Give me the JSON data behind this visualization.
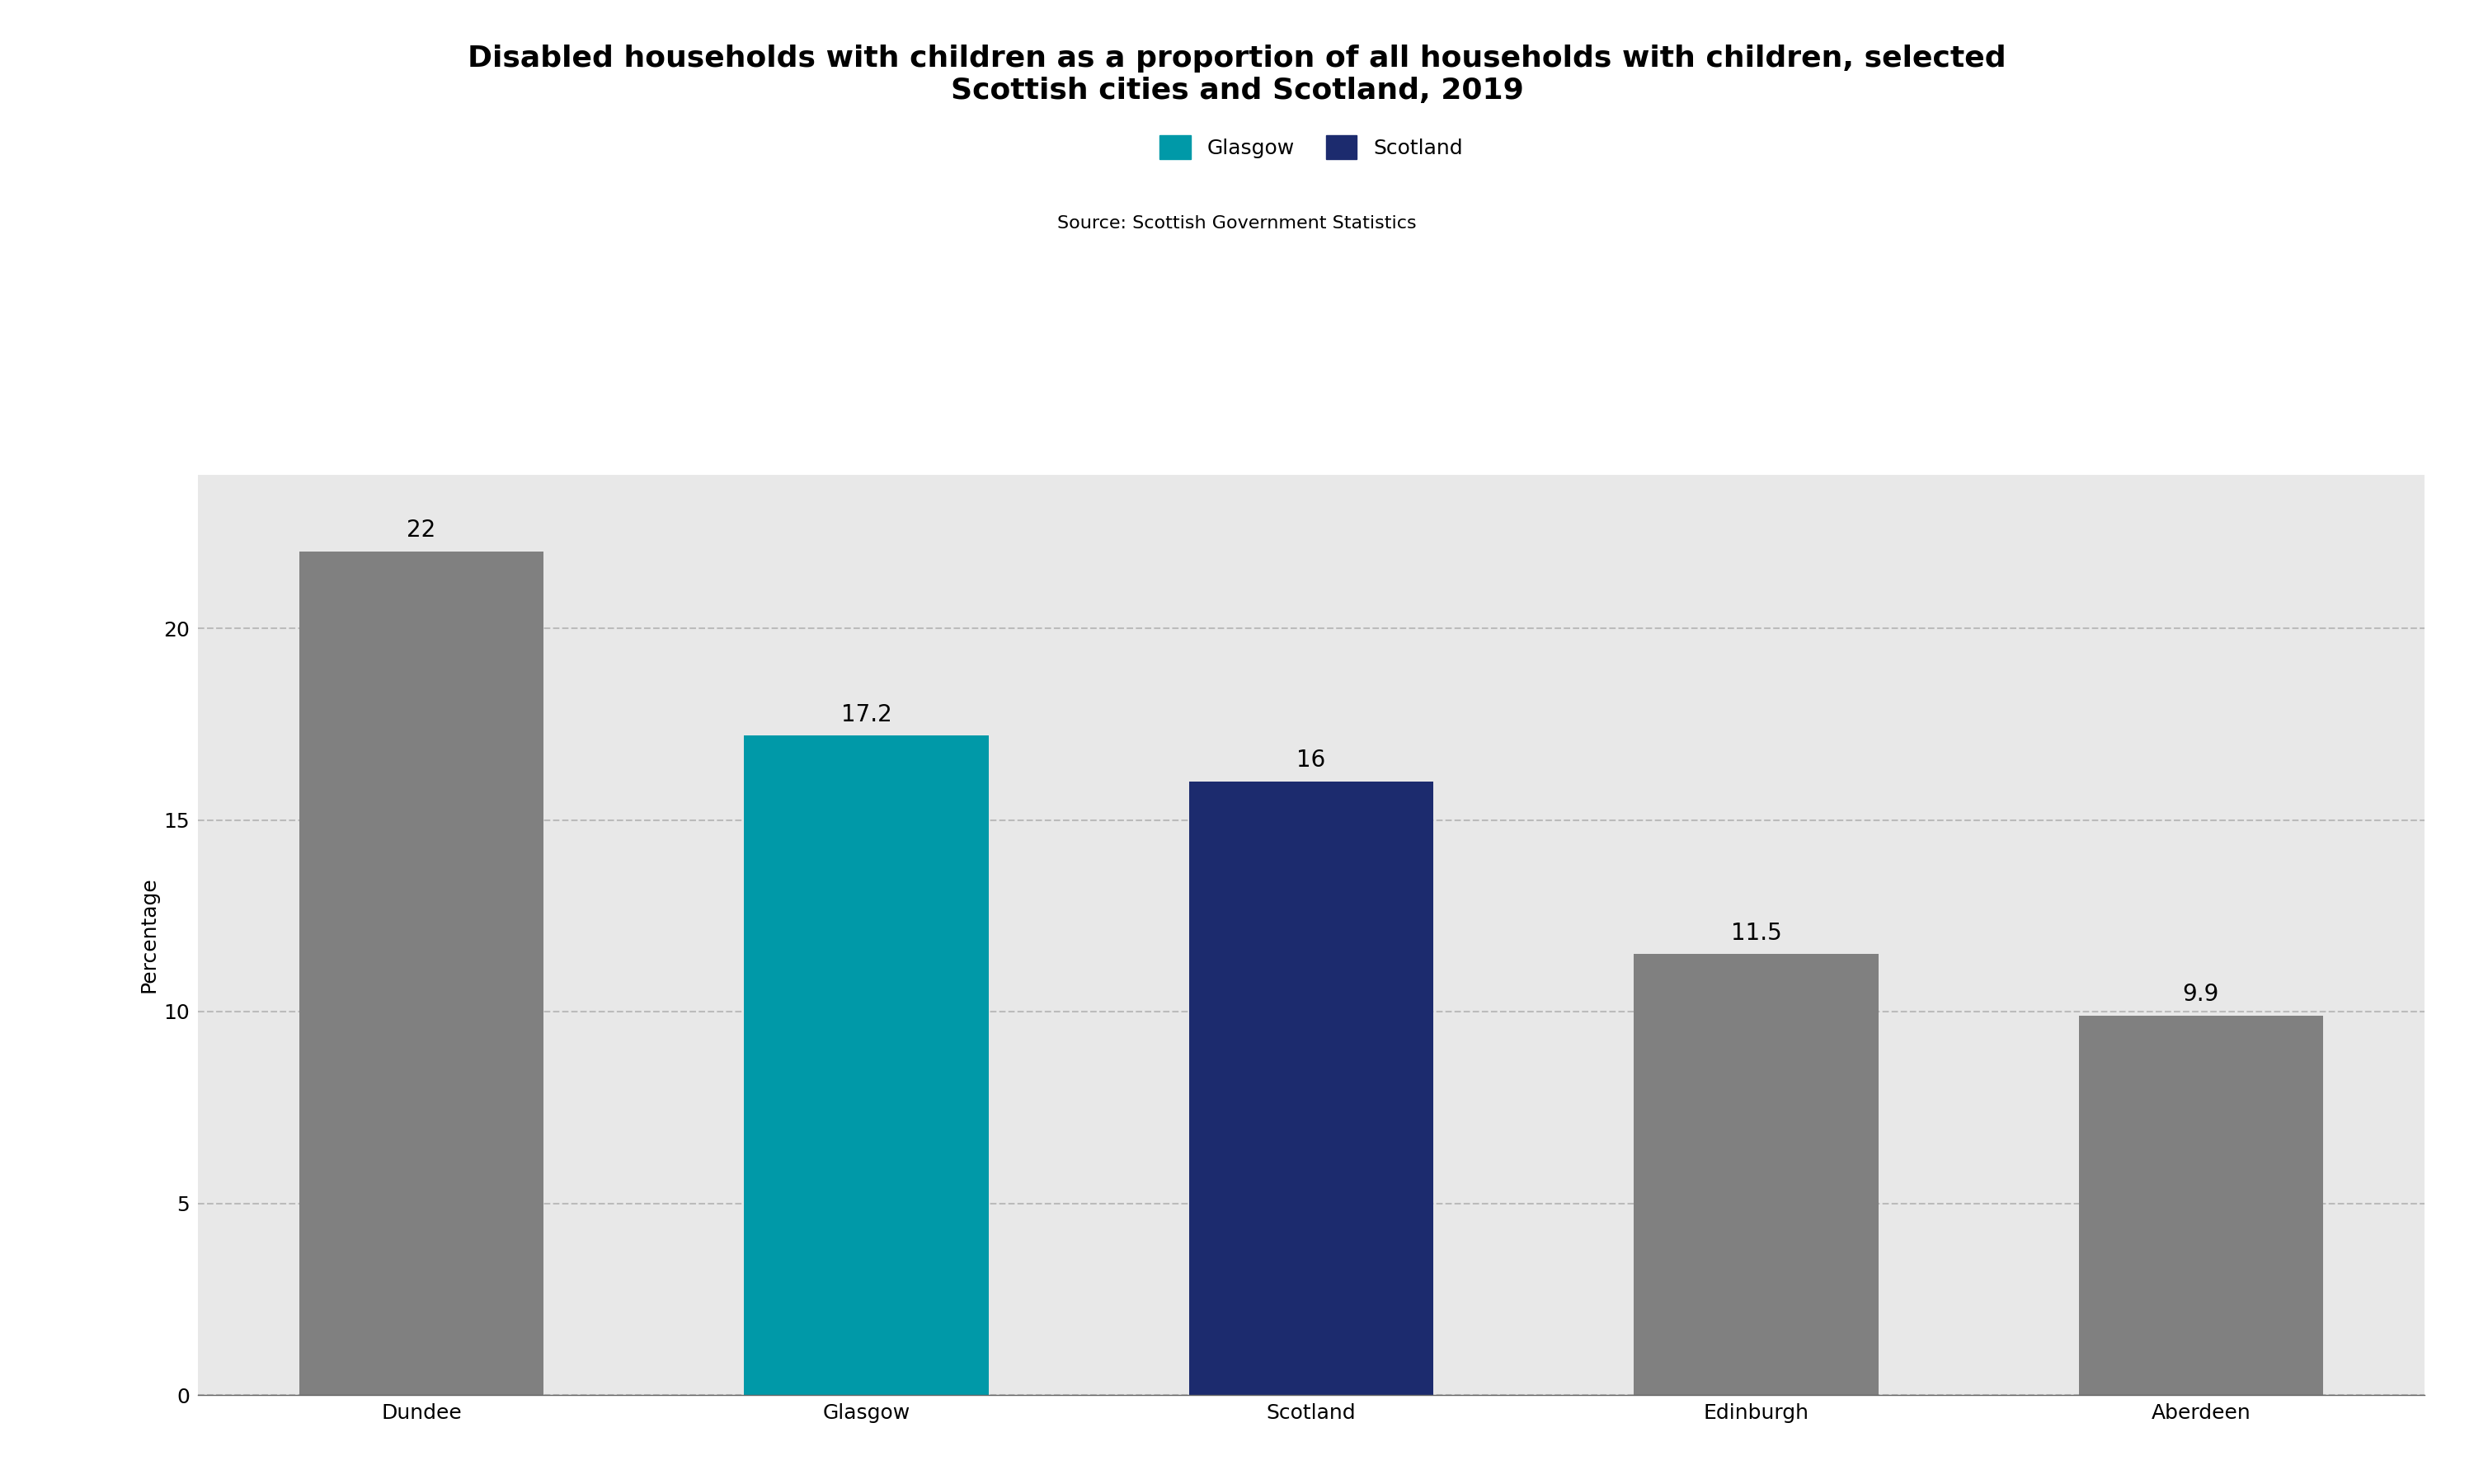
{
  "title_line1": "Disabled households with children as a proportion of all households with children, selected",
  "title_line2": "Scottish cities and Scotland, 2019",
  "source": "Source: Scottish Government Statistics",
  "categories": [
    "Dundee",
    "Glasgow",
    "Scotland",
    "Edinburgh",
    "Aberdeen"
  ],
  "values": [
    22,
    17.2,
    16,
    11.5,
    9.9
  ],
  "bar_colors": [
    "#808080",
    "#0099A8",
    "#1C2B6E",
    "#808080",
    "#808080"
  ],
  "ylabel": "Percentage",
  "ylim": [
    0,
    24
  ],
  "yticks": [
    0,
    5,
    10,
    15,
    20
  ],
  "background_color": "#E8E8E8",
  "outer_background": "#FFFFFF",
  "grid_color": "#BBBBBB",
  "legend_entries": [
    {
      "label": "Glasgow",
      "color": "#0099A8"
    },
    {
      "label": "Scotland",
      "color": "#1C2B6E"
    }
  ],
  "title_fontsize": 26,
  "source_fontsize": 16,
  "ylabel_fontsize": 18,
  "tick_fontsize": 18,
  "bar_label_fontsize": 20,
  "legend_fontsize": 18
}
